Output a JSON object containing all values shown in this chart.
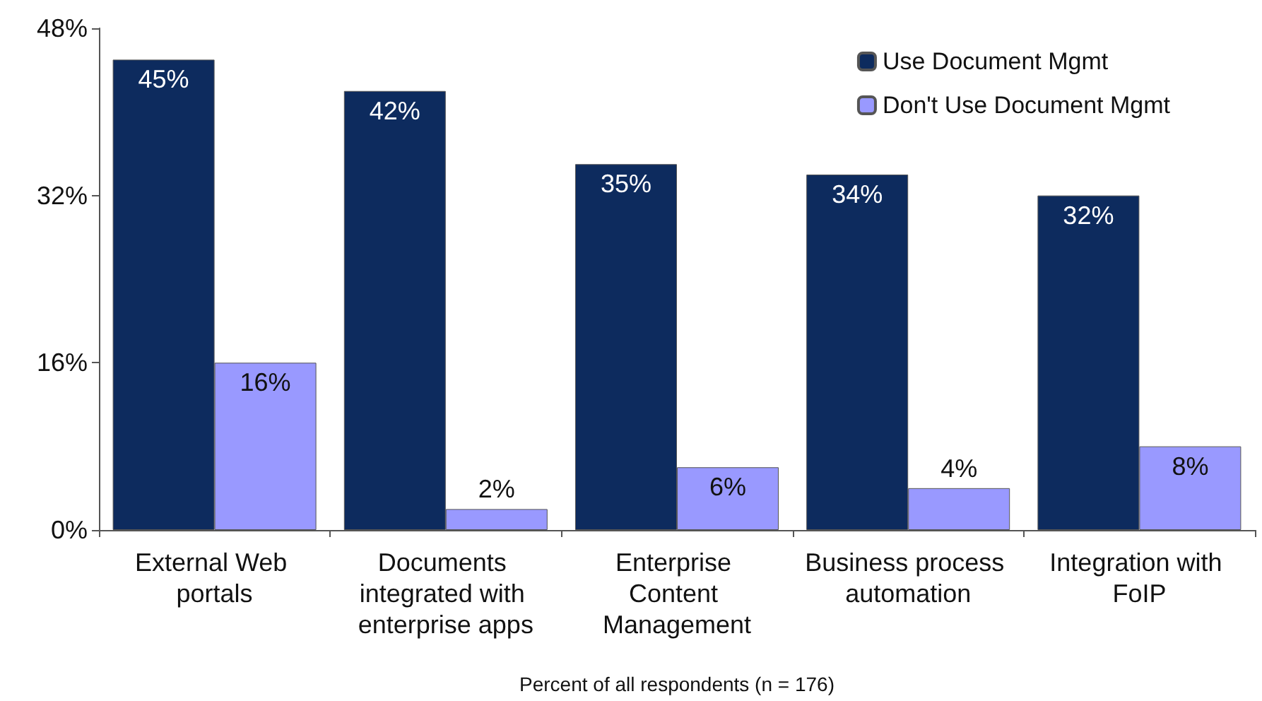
{
  "chart_data": {
    "type": "bar",
    "xlabel": "Percent of all respondents (n = 176)",
    "categories": [
      "External Web portals",
      "Documents integrated with enterprise apps",
      "Enterprise Content Management",
      "Business process automation",
      "Integration with FoIP"
    ],
    "series": [
      {
        "name": "Use Document Mgmt",
        "color": "#0d2b5e",
        "values": [
          45,
          42,
          35,
          34,
          32
        ],
        "value_labels": [
          "45%",
          "42%",
          "35%",
          "34%",
          "32%"
        ]
      },
      {
        "name": "Don't Use Document Mgmt",
        "color": "#9999ff",
        "values": [
          16,
          2,
          6,
          4,
          8
        ],
        "value_labels": [
          "16%",
          "2%",
          "6%",
          "4%",
          "8%"
        ]
      }
    ],
    "ylim": [
      0,
      48
    ],
    "yticks": [
      {
        "value": 0,
        "label": "0%"
      },
      {
        "value": 16,
        "label": "16%"
      },
      {
        "value": 32,
        "label": "32%"
      },
      {
        "value": 48,
        "label": "48%"
      }
    ],
    "grid": false,
    "legend": "top right"
  }
}
